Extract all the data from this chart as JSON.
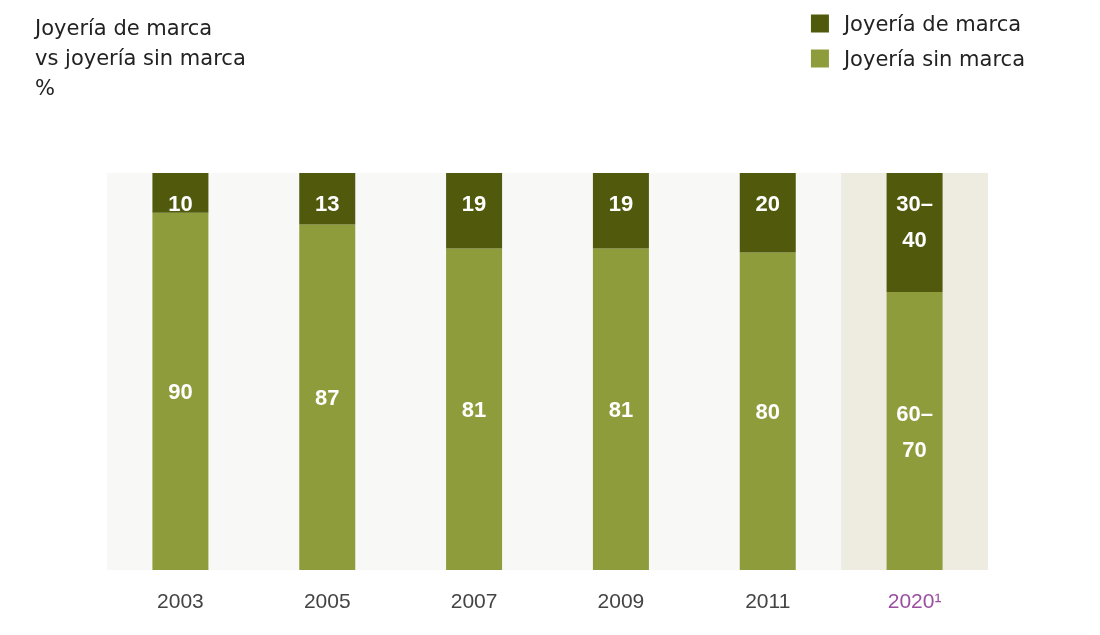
{
  "chart_data": {
    "type": "bar",
    "title": "Joyería de marca\nvs joyería sin marca\n%",
    "stacked": true,
    "categories": [
      "2003",
      "2005",
      "2007",
      "2009",
      "2011",
      "2020¹"
    ],
    "series": [
      {
        "name": "Joyería sin marca",
        "color": "#8f9c3c",
        "values": [
          90,
          87,
          81,
          81,
          80,
          70
        ],
        "value_labels": [
          "90",
          "87",
          "81",
          "81",
          "80",
          "60–70"
        ]
      },
      {
        "name": "Joyería de marca",
        "color": "#515a0c",
        "values": [
          10,
          13,
          19,
          19,
          20,
          30
        ],
        "value_labels": [
          "10",
          "13",
          "19",
          "19",
          "20",
          "30–40"
        ]
      }
    ],
    "ylim": [
      0,
      100
    ],
    "tick_labels": "x",
    "legend": "top right",
    "grid": false,
    "bands": [
      {
        "axis": "x",
        "from": "2020¹",
        "to": "2020¹",
        "color": "#eeebe0"
      }
    ]
  }
}
